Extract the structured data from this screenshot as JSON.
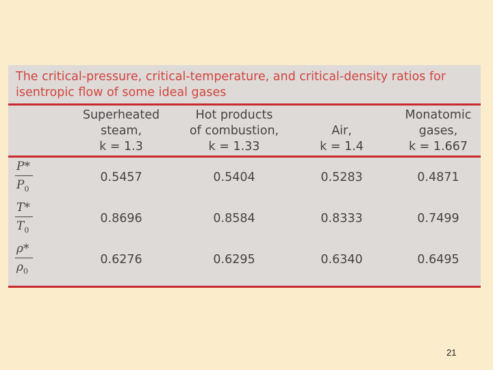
{
  "table": {
    "caption": "The critical-pressure, critical-temperature, and critical-density ratios for isentropic flow of some ideal gases",
    "columns": [
      {
        "lines": [
          "Superheated",
          "steam,",
          "k = 1.3"
        ]
      },
      {
        "lines": [
          "Hot products",
          "of combustion,",
          "k = 1.33"
        ]
      },
      {
        "lines": [
          "Air,",
          "k = 1.4"
        ]
      },
      {
        "lines": [
          "Monatomic",
          "gases,",
          "k = 1.667"
        ]
      }
    ],
    "rows": [
      {
        "label": {
          "num": "P*",
          "den": "P",
          "sub": "0"
        },
        "values": [
          "0.5457",
          "0.5404",
          "0.5283",
          "0.4871"
        ]
      },
      {
        "label": {
          "num": "T*",
          "den": "T",
          "sub": "0"
        },
        "values": [
          "0.8696",
          "0.8584",
          "0.8333",
          "0.7499"
        ]
      },
      {
        "label": {
          "num": "ρ*",
          "den": "ρ",
          "sub": "0"
        },
        "values": [
          "0.6276",
          "0.6295",
          "0.6340",
          "0.6495"
        ]
      }
    ]
  },
  "page_number": "21"
}
